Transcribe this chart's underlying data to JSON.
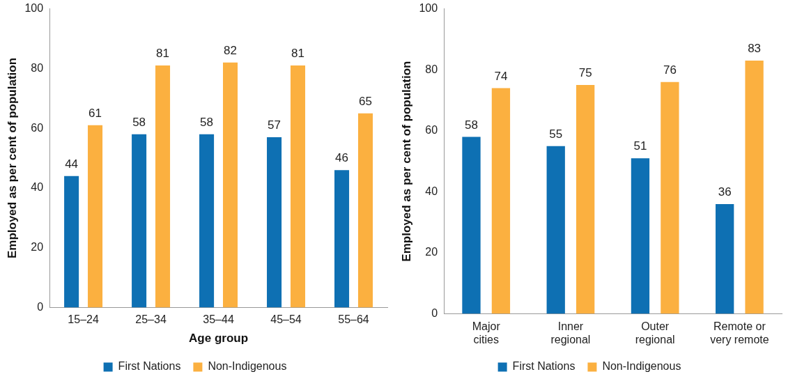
{
  "chart_data": [
    {
      "type": "bar",
      "xlabel": "Age group",
      "ylabel": "Employed as per cent of population",
      "categories": [
        "15–24",
        "25–34",
        "35–44",
        "45–54",
        "55–64"
      ],
      "series": [
        {
          "name": "First Nations",
          "color": "#0e70b3",
          "values": [
            44,
            58,
            58,
            57,
            46
          ]
        },
        {
          "name": "Non-Indigenous",
          "color": "#fbb040",
          "values": [
            61,
            81,
            82,
            81,
            65
          ]
        }
      ],
      "ylim": [
        0,
        100
      ],
      "yticks": [
        0,
        20,
        40,
        60,
        80,
        100
      ],
      "data_labels": true,
      "legend": "bottom"
    },
    {
      "type": "bar",
      "ylabel": "Employed as per cent of population",
      "categories": [
        "Major cities",
        "Inner regional",
        "Outer regional",
        "Remote or very remote"
      ],
      "series": [
        {
          "name": "First Nations",
          "color": "#0e70b3",
          "values": [
            58,
            55,
            51,
            36
          ]
        },
        {
          "name": "Non-Indigenous",
          "color": "#fbb040",
          "values": [
            74,
            75,
            76,
            83
          ]
        }
      ],
      "ylim": [
        0,
        100
      ],
      "yticks": [
        0,
        20,
        40,
        60,
        80,
        100
      ],
      "data_labels": true,
      "legend": "bottom"
    }
  ]
}
